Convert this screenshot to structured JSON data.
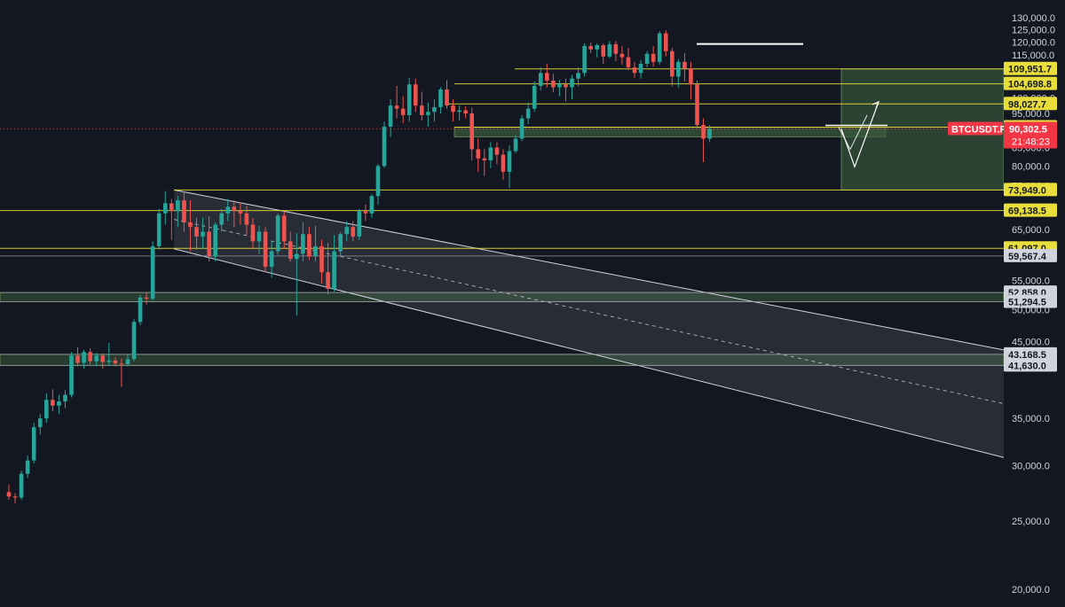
{
  "symbol": "BTCUSDT.P",
  "countdown": "21:48:23",
  "colors": {
    "background": "#131722",
    "up": "#26a69a",
    "down": "#ef5350",
    "level": "#e8dd3a",
    "zone_fill": "#3a5a3d",
    "channel": "#d1d4dc",
    "price_tag": "#f23645"
  },
  "chart_data": {
    "type": "candlestick",
    "ylim": [
      20000,
      130000
    ],
    "y_ticks": [
      "130,000.0",
      "125,000.0",
      "120,000.0",
      "115,000.0",
      "110,000.0",
      "100,000.0",
      "95,000.0",
      "85,000.0",
      "80,000.0",
      "75,000.0",
      "70,000.0",
      "65,000.0",
      "55,000.0",
      "50,000.0",
      "45,000.0",
      "35,000.0",
      "30,000.0",
      "25,000.0",
      "20,000.0"
    ],
    "y_tick_values": [
      130000,
      125000,
      120000,
      115000,
      110000,
      100000,
      95000,
      85000,
      80000,
      75000,
      70000,
      65000,
      55000,
      50000,
      45000,
      35000,
      30000,
      25000,
      20000
    ],
    "last_price": {
      "value": 90302.5,
      "label": "90,302.5"
    },
    "levels": [
      {
        "value": 109951.7,
        "label": "109,951.7",
        "style": "highlight"
      },
      {
        "value": 104698.8,
        "label": "104,698.8",
        "style": "highlight"
      },
      {
        "value": 98027.7,
        "label": "98,027.7",
        "style": "highlight"
      },
      {
        "value": 90835.5,
        "label": "90,835.5",
        "style": "highlight"
      },
      {
        "value": 73949.0,
        "label": "73,949.0",
        "style": "highlight"
      },
      {
        "value": 69138.5,
        "label": "69,138.5",
        "style": "highlight"
      },
      {
        "value": 61097.0,
        "label": "61,097.0",
        "style": "highlight"
      },
      {
        "value": 59567.4,
        "label": "59,567.4",
        "style": "plain"
      },
      {
        "value": 52858.0,
        "label": "52,858.0",
        "style": "plain"
      },
      {
        "value": 51294.5,
        "label": "51,294.5",
        "style": "plain"
      },
      {
        "value": 43168.5,
        "label": "43,168.5",
        "style": "plain"
      },
      {
        "value": 41630.0,
        "label": "41,630.0",
        "style": "plain"
      }
    ],
    "zones": [
      {
        "from": 51294.5,
        "to": 52858.0
      },
      {
        "from": 41630.0,
        "to": 43168.5
      },
      {
        "from": 88000.0,
        "to": 90835.5
      },
      {
        "from": 73949.0,
        "to": 109951.7
      }
    ],
    "candles_ohlc": [
      [
        27500,
        28200,
        26800,
        27100
      ],
      [
        27100,
        27400,
        26500,
        27000
      ],
      [
        27000,
        29500,
        26800,
        29200
      ],
      [
        29200,
        31000,
        28800,
        30500
      ],
      [
        30500,
        34500,
        30200,
        34000
      ],
      [
        34000,
        35500,
        33200,
        35000
      ],
      [
        35000,
        38000,
        34500,
        37200
      ],
      [
        37200,
        38500,
        35800,
        36500
      ],
      [
        36500,
        37800,
        35500,
        37000
      ],
      [
        37000,
        38400,
        36200,
        37800
      ],
      [
        37800,
        43500,
        37500,
        43000
      ],
      [
        43000,
        44200,
        41500,
        42000
      ],
      [
        42000,
        43800,
        41200,
        43500
      ],
      [
        43500,
        44000,
        41800,
        42200
      ],
      [
        42200,
        43400,
        41500,
        43000
      ],
      [
        43000,
        43300,
        41200,
        42100
      ],
      [
        42100,
        44800,
        41600,
        42300
      ],
      [
        42300,
        42800,
        41500,
        41900
      ],
      [
        41900,
        42600,
        38800,
        41800
      ],
      [
        41800,
        43200,
        41500,
        42500
      ],
      [
        42500,
        48500,
        42200,
        48000
      ],
      [
        48000,
        52500,
        47500,
        52000
      ],
      [
        52000,
        52800,
        50800,
        51800
      ],
      [
        51800,
        62500,
        51500,
        61500
      ],
      [
        61500,
        69500,
        60800,
        68500
      ],
      [
        68500,
        73700,
        66000,
        70800
      ],
      [
        70800,
        71800,
        62800,
        69000
      ],
      [
        69000,
        72500,
        65500,
        71500
      ],
      [
        71500,
        73500,
        64500,
        66500
      ],
      [
        66500,
        71500,
        60500,
        65500
      ],
      [
        65500,
        67500,
        60800,
        63500
      ],
      [
        63500,
        67500,
        61000,
        64500
      ],
      [
        64500,
        67800,
        58500,
        59500
      ],
      [
        59500,
        66500,
        58500,
        66000
      ],
      [
        66000,
        69500,
        64500,
        68500
      ],
      [
        68500,
        71800,
        66800,
        70000
      ],
      [
        70000,
        71500,
        65500,
        69000
      ],
      [
        69000,
        71000,
        66000,
        68500
      ],
      [
        68500,
        70200,
        63800,
        66000
      ],
      [
        66000,
        67500,
        61000,
        62500
      ],
      [
        62500,
        65800,
        60000,
        64500
      ],
      [
        64500,
        65500,
        56500,
        57500
      ],
      [
        57500,
        62500,
        55500,
        60500
      ],
      [
        60500,
        68500,
        59800,
        68000
      ],
      [
        68000,
        69000,
        61000,
        62500
      ],
      [
        62500,
        64500,
        58500,
        59000
      ],
      [
        59000,
        64200,
        49000,
        60000
      ],
      [
        60000,
        66500,
        58500,
        64000
      ],
      [
        64000,
        65500,
        58800,
        59500
      ],
      [
        59500,
        65800,
        58500,
        61500
      ],
      [
        61500,
        62800,
        54500,
        56500
      ],
      [
        56500,
        62200,
        52500,
        53500
      ],
      [
        53500,
        63800,
        53000,
        60500
      ],
      [
        60500,
        64500,
        59500,
        64000
      ],
      [
        64000,
        66800,
        62500,
        65500
      ],
      [
        65500,
        66800,
        62500,
        63500
      ],
      [
        63500,
        69500,
        62800,
        69000
      ],
      [
        69000,
        70500,
        66800,
        68500
      ],
      [
        68500,
        73000,
        67500,
        72500
      ],
      [
        72500,
        80500,
        70500,
        80000
      ],
      [
        80000,
        92500,
        79500,
        91000
      ],
      [
        91000,
        99500,
        88000,
        97500
      ],
      [
        97500,
        104000,
        93500,
        96500
      ],
      [
        96500,
        100500,
        92000,
        94500
      ],
      [
        94500,
        106800,
        92500,
        104500
      ],
      [
        104500,
        106500,
        95500,
        97500
      ],
      [
        97500,
        102000,
        92800,
        94500
      ],
      [
        94500,
        98500,
        91000,
        95500
      ],
      [
        95500,
        99500,
        92500,
        97000
      ],
      [
        97000,
        103500,
        95000,
        102800
      ],
      [
        102800,
        106000,
        96500,
        97500
      ],
      [
        97500,
        99500,
        92500,
        95500
      ],
      [
        95500,
        97500,
        92800,
        96000
      ],
      [
        96000,
        97200,
        93500,
        95000
      ],
      [
        95000,
        96800,
        81500,
        84500
      ],
      [
        84500,
        87500,
        78500,
        82000
      ],
      [
        82000,
        84500,
        77500,
        81500
      ],
      [
        81500,
        86500,
        79500,
        85000
      ],
      [
        85000,
        86500,
        80500,
        83000
      ],
      [
        83000,
        84500,
        76500,
        78500
      ],
      [
        78500,
        85500,
        74500,
        84000
      ],
      [
        84000,
        88500,
        83500,
        87500
      ],
      [
        87500,
        94500,
        86800,
        93500
      ],
      [
        93500,
        98500,
        91800,
        96500
      ],
      [
        96500,
        105500,
        95500,
        104000
      ],
      [
        104000,
        110500,
        102500,
        108500
      ],
      [
        108500,
        111800,
        103500,
        105800
      ],
      [
        105800,
        108200,
        101800,
        103500
      ],
      [
        103500,
        106000,
        100500,
        104500
      ],
      [
        104500,
        106500,
        98800,
        103500
      ],
      [
        103500,
        107800,
        99500,
        106500
      ],
      [
        106500,
        110500,
        103800,
        108500
      ],
      [
        108500,
        119500,
        107200,
        118500
      ],
      [
        118500,
        119800,
        115800,
        117200
      ],
      [
        117200,
        119500,
        114200,
        118800
      ],
      [
        118800,
        119500,
        111800,
        114500
      ],
      [
        114500,
        120500,
        113800,
        119200
      ],
      [
        119200,
        120500,
        112800,
        115500
      ],
      [
        115500,
        118500,
        111500,
        114200
      ],
      [
        114200,
        117800,
        109500,
        110500
      ],
      [
        110500,
        112500,
        106800,
        108500
      ],
      [
        108500,
        113200,
        106500,
        111800
      ],
      [
        111800,
        116500,
        110500,
        115500
      ],
      [
        115500,
        118500,
        110800,
        112500
      ],
      [
        112500,
        124500,
        111500,
        123500
      ],
      [
        123500,
        124800,
        114500,
        116500
      ],
      [
        116500,
        117800,
        103800,
        107200
      ],
      [
        107200,
        113500,
        103500,
        112500
      ],
      [
        112500,
        115800,
        105500,
        110000
      ],
      [
        110000,
        112500,
        99500,
        104500
      ],
      [
        104500,
        105800,
        90500,
        91500
      ],
      [
        91500,
        93500,
        81000,
        87500
      ],
      [
        87500,
        91500,
        86500,
        90300
      ]
    ],
    "channel": {
      "upper": [
        [
          196,
          73949
        ],
        [
          1131,
          43800
        ]
      ],
      "lower": [
        [
          196,
          61000
        ],
        [
          1131,
          30800
        ]
      ],
      "mid_dashed": true
    },
    "top_line": {
      "value": 119300,
      "x1": 785,
      "x2": 905
    },
    "projection": [
      [
        948,
        90300
      ],
      [
        963,
        79800
      ],
      [
        990,
        98700
      ]
    ],
    "projection_alt": [
      [
        945,
        90835
      ],
      [
        958,
        84500
      ],
      [
        977,
        94500
      ]
    ]
  }
}
